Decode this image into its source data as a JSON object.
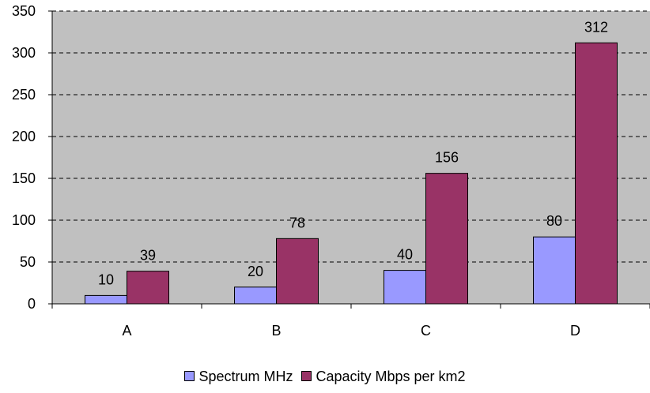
{
  "chart_data": {
    "type": "bar",
    "categories": [
      "A",
      "B",
      "C",
      "D"
    ],
    "series": [
      {
        "name": "Spectrum MHz",
        "values": [
          10,
          20,
          40,
          80
        ],
        "color": "#9999ff"
      },
      {
        "name": "Capacity Mbps per km2",
        "values": [
          39,
          78,
          156,
          312
        ],
        "color": "#993366"
      }
    ],
    "ylim": [
      0,
      350
    ],
    "yticks": [
      0,
      50,
      100,
      150,
      200,
      250,
      300,
      350
    ],
    "title": "",
    "xlabel": "",
    "ylabel": "",
    "plot_background": "#c0c0c0",
    "grid": "dashed horizontal",
    "legend_position": "bottom"
  },
  "legend": {
    "items": [
      {
        "label": "Spectrum MHz",
        "color": "#9999ff"
      },
      {
        "label": "Capacity Mbps per km2",
        "color": "#993366"
      }
    ]
  }
}
